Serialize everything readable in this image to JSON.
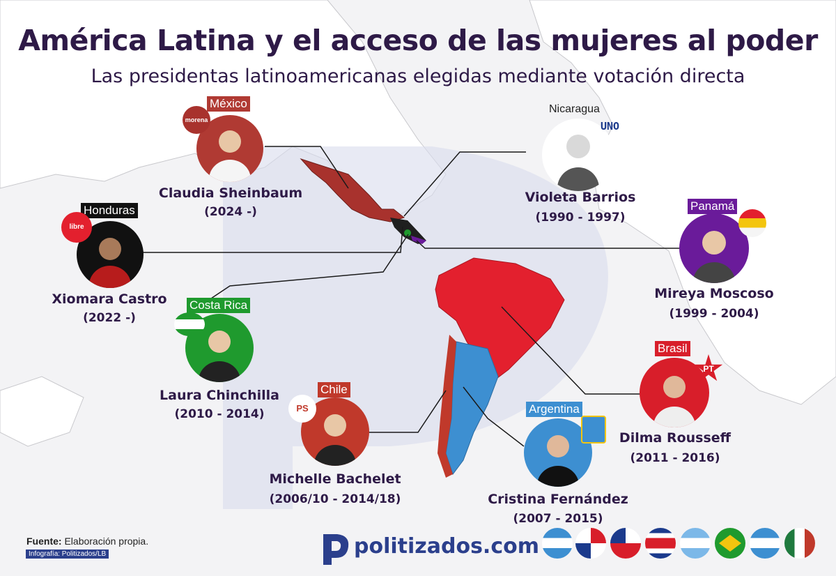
{
  "header": {
    "title": "América Latina y el acceso de las mujeres al poder",
    "subtitle": "Las presidentas latinoamericanas elegidas mediante votación directa"
  },
  "presidents": [
    {
      "country": "México",
      "name": "Claudia Sheinbaum",
      "years": "(2024 -)",
      "party_logo": "morena",
      "color": "#b03a33"
    },
    {
      "country": "Nicaragua",
      "name": "Violeta Barrios",
      "years": "(1990 - 1997)",
      "party_logo": "UNO",
      "color": "#ffffff"
    },
    {
      "country": "Honduras",
      "name": "Xiomara Castro",
      "years": "(2022 -)",
      "party_logo": "libre",
      "color": "#000000"
    },
    {
      "country": "Panamá",
      "name": "Mireya Moscoso",
      "years": "(1999 - 2004)",
      "party_logo": "arnulfista",
      "color": "#6a1b9a"
    },
    {
      "country": "Costa Rica",
      "name": "Laura Chinchilla",
      "years": "(2010 - 2014)",
      "party_logo": "pln",
      "color": "#1f9a2e"
    },
    {
      "country": "Brasil",
      "name": "Dilma Rousseff",
      "years": "(2011 - 2016)",
      "party_logo": "PT",
      "color": "#d81e2a"
    },
    {
      "country": "Chile",
      "name": "Michelle Bachelet",
      "years": "(2006/10 - 2014/18)",
      "party_logo": "PS",
      "color": "#c0392b"
    },
    {
      "country": "Argentina",
      "name": "Cristina Fernández",
      "years": "(2007 - 2015)",
      "party_logo": "pj",
      "color": "#3d8fd1"
    }
  ],
  "footer": {
    "source_label": "Fuente:",
    "source_text": "Elaboración propia.",
    "infographic": "Infografía: Politizados/LB",
    "brand": "politizados.com"
  },
  "flags": [
    "nicaragua",
    "panama",
    "chile",
    "costa-rica",
    "argentina",
    "brasil",
    "honduras",
    "mexico"
  ]
}
